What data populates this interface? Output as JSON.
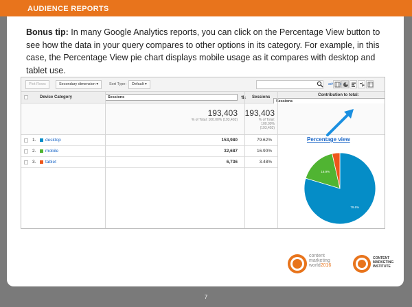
{
  "header": {
    "title": "AUDIENCE REPORTS"
  },
  "tip": {
    "bold": "Bonus tip:",
    "text": " In many Google Analytics reports, you can click on the Percentage View button to  see how the data in your query compares to other options in its category. For example, in this case, the Percentage View pie chart displays mobile usage as it compares with desktop and tablet use."
  },
  "toolbar": {
    "plot_rows": "Plot Rows",
    "secondary_dimension": "Secondary dimension",
    "sort_type_label": "Sort Type:",
    "sort_default": "Default",
    "advanced": "advanced"
  },
  "table": {
    "columns": {
      "dimension": "Device Category",
      "metric": "Sessions",
      "metric2": "Sessions",
      "contribution": "Contribution to total:",
      "contribution_metric": "Sessions"
    },
    "totals": {
      "left_value": "193,403",
      "left_caption": "% of Total: 100.00% (193,403)",
      "right_value": "193,403",
      "right_caption_1": "% of Total:",
      "right_caption_2": "100.00%",
      "right_caption_3": "(193,403)"
    },
    "rows": [
      {
        "num": "1.",
        "label": "desktop",
        "value": "153,980",
        "pct": "79.62%",
        "color": "#058dc7"
      },
      {
        "num": "2.",
        "label": "mobile",
        "value": "32,687",
        "pct": "16.90%",
        "color": "#50b432"
      },
      {
        "num": "3.",
        "label": "tablet",
        "value": "6,736",
        "pct": "3.48%",
        "color": "#ed561b"
      }
    ]
  },
  "annotation": {
    "label": "Percentage view"
  },
  "chart_data": {
    "type": "pie",
    "categories": [
      "desktop",
      "mobile",
      "tablet"
    ],
    "values": [
      79.62,
      16.9,
      3.48
    ],
    "slice_labels": [
      "79.6%",
      "16.9%",
      ""
    ],
    "colors": [
      "#058dc7",
      "#50b432",
      "#ed561b"
    ]
  },
  "page_number": "7",
  "logos": {
    "cmw_line1": "content",
    "cmw_line2": "marketing",
    "cmw_line3": "world",
    "cmw_year": "2016",
    "cmi_line1": "CONTENT",
    "cmi_line2": "MARKETING",
    "cmi_line3": "INSTITUTE"
  }
}
